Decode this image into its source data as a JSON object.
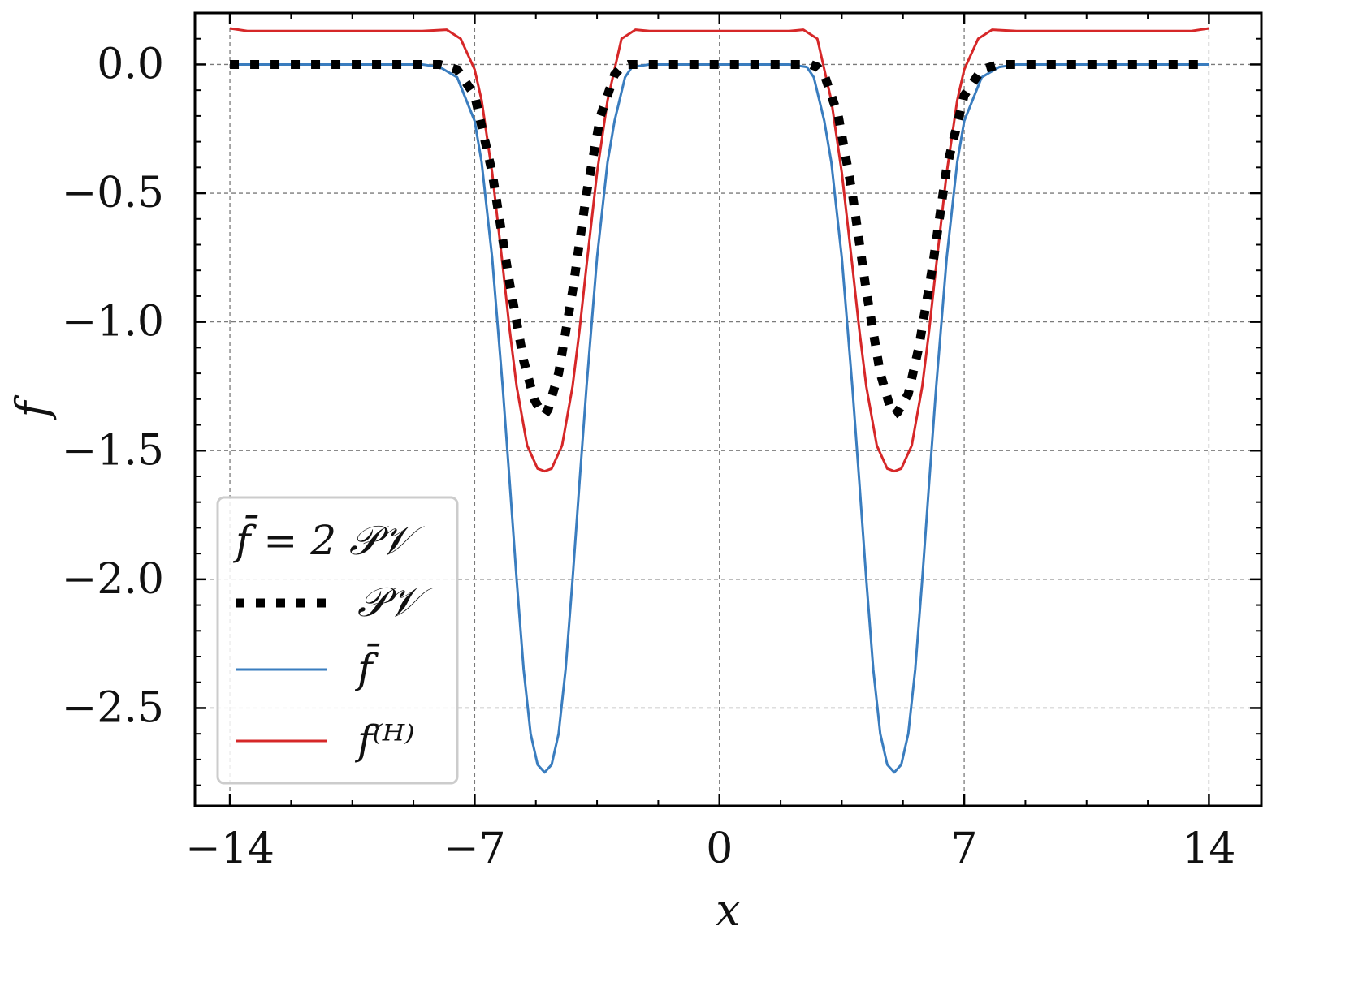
{
  "chart_data": {
    "type": "line",
    "xlabel": "x",
    "ylabel": "f",
    "xlim": [
      -15.0,
      15.5
    ],
    "ylim": [
      -2.88,
      0.2
    ],
    "xticks": [
      -14,
      -7,
      0,
      7,
      14
    ],
    "xtick_labels": [
      "−14",
      "−7",
      "0",
      "7",
      "14"
    ],
    "yticks": [
      0.0,
      -0.5,
      -1.0,
      -1.5,
      -2.0,
      -2.5
    ],
    "ytick_labels": [
      "0.0",
      "−0.5",
      "−1.0",
      "−1.5",
      "−2.0",
      "−2.5"
    ],
    "grid": true,
    "legend": {
      "placement": "lower-left",
      "title": "f̄ = 2 𝒫𝒱",
      "entries": [
        "𝒫𝒱",
        "f̄",
        "f⁽ᴴ⁾"
      ]
    },
    "series": [
      {
        "name": "𝒫𝒱",
        "color": "#000000",
        "style": "dotted",
        "x": [
          -14,
          -13,
          -12,
          -11,
          -10,
          -9,
          -8,
          -7.5,
          -7,
          -6.5,
          -6,
          -5.6,
          -5.3,
          -5.1,
          -5.0,
          -4.9,
          -4.6,
          -4.2,
          -3.8,
          -3.4,
          -3.0,
          -2.8,
          -2.6,
          -2,
          -1,
          0,
          1,
          2,
          2.6,
          2.8,
          3.0,
          3.4,
          3.8,
          4.2,
          4.6,
          4.9,
          5.0,
          5.1,
          5.4,
          5.7,
          6.1,
          6.5,
          7.0,
          7.5,
          8,
          9,
          10,
          11,
          12,
          13,
          14
        ],
        "y": [
          0,
          0,
          0,
          0,
          0,
          0,
          0,
          -0.02,
          -0.12,
          -0.42,
          -0.85,
          -1.15,
          -1.3,
          -1.35,
          -1.36,
          -1.34,
          -1.2,
          -0.88,
          -0.5,
          -0.2,
          -0.04,
          -0.01,
          0,
          0,
          0,
          0,
          0,
          0,
          0,
          -0.01,
          -0.04,
          -0.2,
          -0.5,
          -0.88,
          -1.2,
          -1.34,
          -1.36,
          -1.35,
          -1.28,
          -1.1,
          -0.78,
          -0.4,
          -0.12,
          -0.02,
          0,
          0,
          0,
          0,
          0,
          0,
          0
        ]
      },
      {
        "name": "f̄",
        "color": "#3a7dbf",
        "style": "solid",
        "x": [
          -14,
          -12,
          -10,
          -8.5,
          -8,
          -7.5,
          -7.0,
          -6.8,
          -6.5,
          -6.2,
          -6.0,
          -5.8,
          -5.6,
          -5.4,
          -5.2,
          -5.0,
          -4.8,
          -4.6,
          -4.4,
          -4.2,
          -4.0,
          -3.8,
          -3.5,
          -3.2,
          -3.0,
          -2.7,
          -2.5,
          -2,
          0,
          2,
          2.5,
          2.7,
          3.0,
          3.2,
          3.5,
          3.8,
          4.0,
          4.2,
          4.4,
          4.6,
          4.8,
          5.0,
          5.2,
          5.4,
          5.6,
          5.8,
          6.0,
          6.2,
          6.5,
          6.8,
          7.0,
          7.5,
          8,
          8.5,
          10,
          12,
          14
        ],
        "y": [
          0,
          0,
          0,
          0,
          -0.01,
          -0.05,
          -0.22,
          -0.38,
          -0.75,
          -1.25,
          -1.62,
          -2.0,
          -2.35,
          -2.6,
          -2.72,
          -2.75,
          -2.72,
          -2.6,
          -2.35,
          -2.0,
          -1.62,
          -1.25,
          -0.75,
          -0.38,
          -0.22,
          -0.05,
          -0.01,
          0,
          0,
          0,
          -0.01,
          -0.05,
          -0.22,
          -0.38,
          -0.75,
          -1.25,
          -1.62,
          -2.0,
          -2.35,
          -2.6,
          -2.72,
          -2.75,
          -2.72,
          -2.6,
          -2.35,
          -2.0,
          -1.62,
          -1.25,
          -0.75,
          -0.38,
          -0.22,
          -0.05,
          -0.01,
          0,
          0,
          0,
          0
        ]
      },
      {
        "name": "f⁽ᴴ⁾",
        "color": "#d62728",
        "style": "solid",
        "x": [
          -14,
          -13.5,
          -12,
          -10,
          -8.5,
          -7.8,
          -7.4,
          -7.0,
          -6.8,
          -6.5,
          -6.2,
          -6.0,
          -5.8,
          -5.5,
          -5.2,
          -5.0,
          -4.8,
          -4.5,
          -4.2,
          -4.0,
          -3.8,
          -3.5,
          -3.2,
          -2.8,
          -2.4,
          -2,
          0,
          2,
          2.4,
          2.8,
          3.2,
          3.5,
          3.8,
          4.0,
          4.2,
          4.5,
          4.8,
          5.0,
          5.2,
          5.5,
          5.8,
          6.0,
          6.2,
          6.5,
          6.8,
          7.0,
          7.4,
          7.8,
          8.5,
          10,
          12,
          13.5,
          14
        ],
        "y": [
          0.14,
          0.13,
          0.13,
          0.13,
          0.13,
          0.135,
          0.1,
          -0.02,
          -0.14,
          -0.42,
          -0.78,
          -1.03,
          -1.25,
          -1.48,
          -1.57,
          -1.58,
          -1.57,
          -1.48,
          -1.25,
          -1.03,
          -0.78,
          -0.42,
          -0.14,
          0.1,
          0.135,
          0.13,
          0.13,
          0.13,
          0.135,
          0.1,
          -0.14,
          -0.42,
          -0.78,
          -1.03,
          -1.25,
          -1.48,
          -1.57,
          -1.58,
          -1.57,
          -1.48,
          -1.25,
          -1.03,
          -0.78,
          -0.42,
          -0.14,
          -0.02,
          0.1,
          0.135,
          0.13,
          0.13,
          0.13,
          0.13,
          0.14
        ]
      }
    ]
  }
}
